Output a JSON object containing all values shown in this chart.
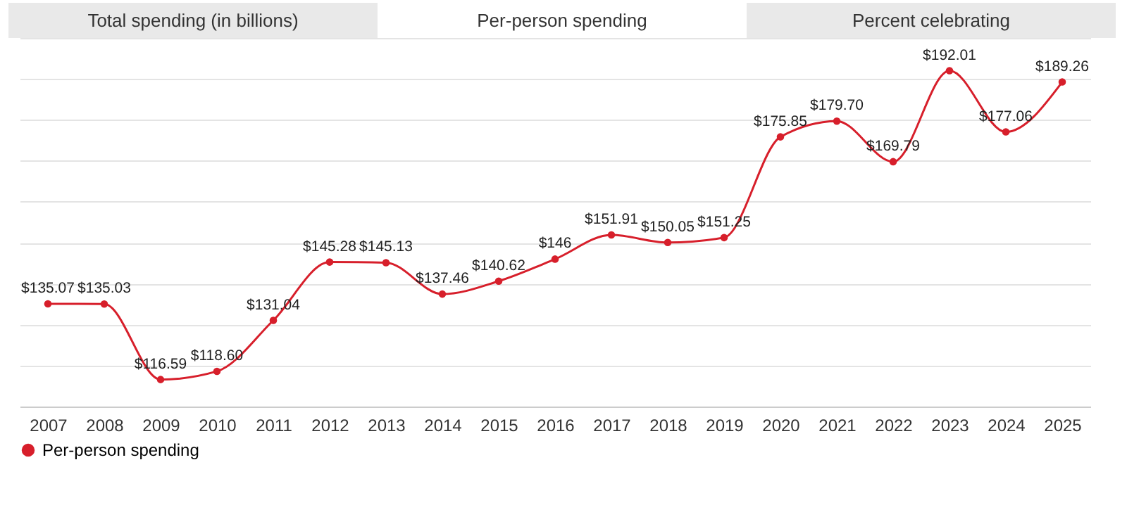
{
  "chart_data": {
    "type": "line",
    "title": "Per-person spending",
    "annotations": [
      "Total spending (in billions)",
      "Percent celebrating"
    ],
    "categories": [
      "2007",
      "2008",
      "2009",
      "2010",
      "2011",
      "2012",
      "2013",
      "2014",
      "2015",
      "2016",
      "2017",
      "2018",
      "2019",
      "2020",
      "2021",
      "2022",
      "2023",
      "2024",
      "2025"
    ],
    "series": [
      {
        "name": "Per-person spending",
        "color": "#d71f2b",
        "values": [
          135.07,
          135.03,
          116.59,
          118.6,
          131.04,
          145.28,
          145.13,
          137.46,
          140.62,
          146,
          151.91,
          150.05,
          151.25,
          175.85,
          179.7,
          169.79,
          192.01,
          177.06,
          189.26
        ],
        "value_labels": [
          "$135.07",
          "$135.03",
          "$116.59",
          "$118.60",
          "$131.04",
          "$145.28",
          "$145.13",
          "$137.46",
          "$140.62",
          "$146",
          "$151.91",
          "$150.05",
          "$151.25",
          "$175.85",
          "$179.70",
          "$169.79",
          "$192.01",
          "$177.06",
          "$189.26"
        ]
      }
    ],
    "tick_labels": "x",
    "grid": "y",
    "legend": "bottom",
    "marker": "circle",
    "line_style": "solid"
  }
}
